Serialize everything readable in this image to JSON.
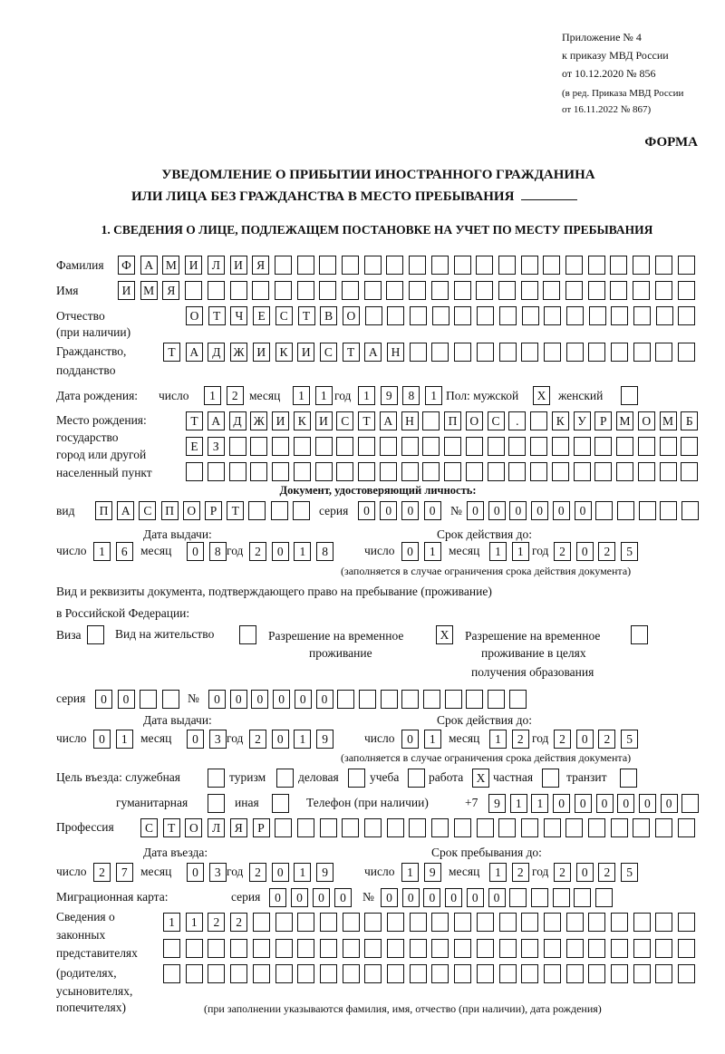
{
  "header": {
    "appendix": [
      "Приложение № 4",
      "к приказу МВД России",
      "от 10.12.2020 № 856"
    ],
    "amendment": [
      "(в ред. Приказа МВД России",
      "от 16.11.2022 № 867)"
    ],
    "form_label": "ФОРМА",
    "title_line1": "УВЕДОМЛЕНИЕ О ПРИБЫТИИ ИНОСТРАННОГО ГРАЖДАНИНА",
    "title_line2": "ИЛИ ЛИЦА БЕЗ ГРАЖДАНСТВА В МЕСТО ПРЕБЫВАНИЯ",
    "section_title": "1. СВЕДЕНИЯ О ЛИЦЕ, ПОДЛЕЖАЩЕМ ПОСТАНОВКЕ НА УЧЕТ ПО МЕСТУ ПРЕБЫВАНИЯ"
  },
  "labels": {
    "surname": "Фамилия",
    "name": "Имя",
    "patronymic": "Отчество",
    "patronymic_note": "(при наличии)",
    "citizenship": "Гражданство,",
    "citizenship2": "подданство",
    "birth_date": "Дата рождения:",
    "day": "число",
    "month": "месяц",
    "year": "год",
    "sex": "Пол: мужской",
    "female": "женский",
    "birthplace": [
      "Место рождения:",
      "государство",
      "город или другой",
      "населенный пункт"
    ],
    "id_doc_header": "Документ, удостоверяющий личность:",
    "kind": "вид",
    "series": "серия",
    "number": "№",
    "issue_date": "Дата выдачи:",
    "valid_until": "Срок действия до:",
    "validity_note": "(заполняется в случае ограничения срока действия документа)",
    "residence_doc1": "Вид и реквизиты документа, подтверждающего право на пребывание (проживание)",
    "residence_doc2": "в Российской Федерации:",
    "visa": "Виза",
    "residence_permit": "Вид на жительство",
    "temp_permit1": "Разрешение на временное",
    "temp_permit2": "проживание",
    "temp_edu1": "Разрешение на временное",
    "temp_edu2": "проживание в целях",
    "temp_edu3": "получения образования",
    "purpose": "Цель въезда: служебная",
    "tourism": "туризм",
    "business": "деловая",
    "study": "учеба",
    "work": "работа",
    "private": "частная",
    "transit": "транзит",
    "humanitarian": "гуманитарная",
    "other": "иная",
    "phone": "Телефон (при наличии)",
    "phone_prefix": "+7",
    "profession": "Профессия",
    "entry_date": "Дата въезда:",
    "stay_until": "Срок пребывания до:",
    "migration_card": "Миграционная карта:",
    "representatives": [
      "Сведения о",
      "законных",
      "представителях",
      "(родителях,",
      "усыновителях,",
      "попечителях)"
    ],
    "representatives_note": "(при заполнении указываются фамилия, имя, отчество (при наличии), дата рождения)"
  },
  "person": {
    "surname": "ФАМИЛИЯ",
    "name": "ИМЯ",
    "patronymic": "ОТЧЕСТВО",
    "citizenship": "ТАДЖИКИСТАН",
    "birth_day": "12",
    "birth_month": "11",
    "birth_year": "1981",
    "sex_male": true,
    "sex_female": false,
    "birthplace_line1": "ТАДЖИКИСТАН ПОС. КУРМОМБ",
    "birthplace_line2": "ЕЗ",
    "birthplace_line3": ""
  },
  "id_document": {
    "kind": "ПАСПОРТ",
    "series": "0000",
    "number": "000000",
    "issue_day": "16",
    "issue_month": "08",
    "issue_year": "2018",
    "valid_day": "01",
    "valid_month": "11",
    "valid_year": "2025"
  },
  "residence_document": {
    "visa": false,
    "residence_permit": false,
    "temporary_residence_permit": true,
    "temporary_residence_education": false,
    "series": "00",
    "number": "000000",
    "issue_day": "01",
    "issue_month": "03",
    "issue_year": "2019",
    "valid_day": "01",
    "valid_month": "12",
    "valid_year": "2025"
  },
  "purpose": {
    "official": false,
    "tourism": false,
    "business": false,
    "study": false,
    "work": true,
    "private": false,
    "transit": false,
    "humanitarian": false,
    "other": false
  },
  "check_mark": "X",
  "phone": "911000000",
  "profession": "СТОЛЯР",
  "entry": {
    "entry_day": "27",
    "entry_month": "03",
    "entry_year": "2019",
    "stay_day": "19",
    "stay_month": "12",
    "stay_year": "2025"
  },
  "migration_card": {
    "series": "0000",
    "number": "000000"
  },
  "representatives": {
    "line1": "1122",
    "line2": "",
    "line3": ""
  }
}
